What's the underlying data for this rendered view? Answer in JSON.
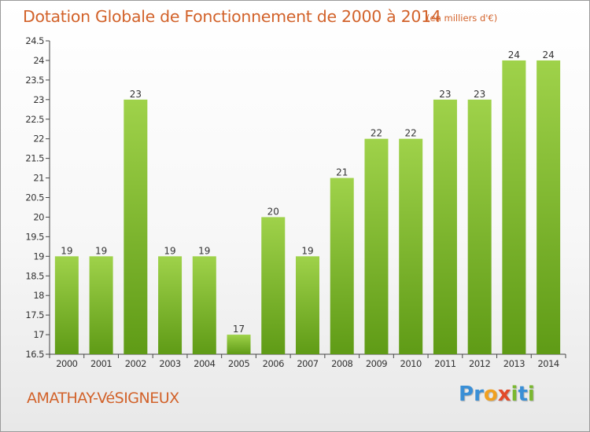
{
  "title": "Dotation Globale de Fonctionnement de 2000 à 2014",
  "subtitle": "(en milliers d'€)",
  "place": "AMATHAY-VéSIGNEUX",
  "logo": {
    "letters": [
      "P",
      "r",
      "o",
      "x",
      "i",
      "t",
      "i"
    ],
    "colors": [
      "#3a8fd6",
      "#3a8fd6",
      "#f0a020",
      "#e24b2a",
      "#7ab830",
      "#3a8fd6",
      "#7ab830"
    ]
  },
  "colors": {
    "bar_top": "#9fd24a",
    "bar_bottom": "#5f9b16",
    "text": "#d2622a",
    "axis": "#444444"
  },
  "chart_data": {
    "type": "bar",
    "categories": [
      "2000",
      "2001",
      "2002",
      "2003",
      "2004",
      "2005",
      "2006",
      "2007",
      "2008",
      "2009",
      "2010",
      "2011",
      "2012",
      "2013",
      "2014"
    ],
    "values": [
      19,
      19,
      23,
      19,
      19,
      17,
      20,
      19,
      21,
      22,
      22,
      23,
      23,
      24,
      24
    ],
    "ylim": [
      16.5,
      24.5
    ],
    "yticks": [
      "16.5",
      "17",
      "17.5",
      "18",
      "18.5",
      "19",
      "19.5",
      "20",
      "20.5",
      "21",
      "21.5",
      "22",
      "22.5",
      "23",
      "23.5",
      "24",
      "24.5"
    ],
    "grid": false
  }
}
